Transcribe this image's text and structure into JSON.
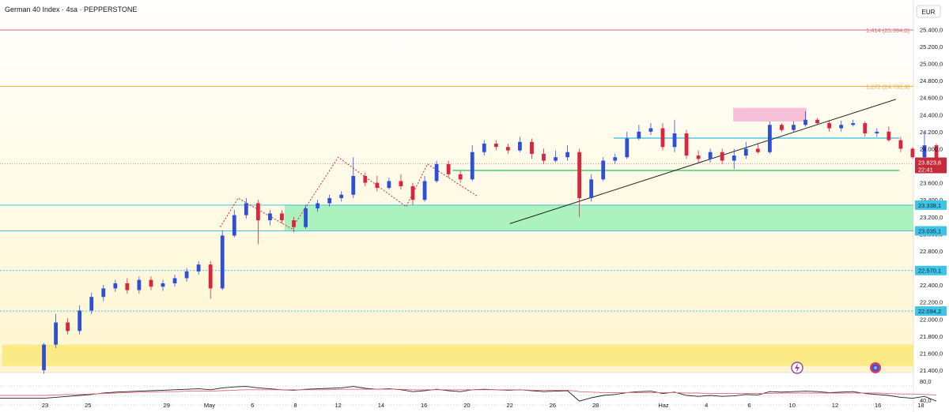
{
  "header": {
    "title": "German 40 Index · 4sa · PEPPERSTONE",
    "currency": "EUR"
  },
  "colors": {
    "up": "#2e4fd6",
    "down": "#d7263d",
    "fib_1414": "#e06b7a",
    "fib_1272": "#f2a93b",
    "support": "#3fc3e6",
    "green_line": "#2ecf6a",
    "green_zone": "#9df0b8",
    "yellow_zone": "#fbe77a",
    "pink_zone": "#f5b8d6",
    "rsi": "#222222",
    "rsi_ma": "#e06b7a",
    "price_tag": "#c62b3a"
  },
  "chart_data": [
    {
      "type": "candlestick",
      "title": "German 40 Index · 4sa · PEPPERSTONE",
      "currency": "EUR",
      "ylim": [
        21370,
        25500
      ],
      "y_ticks": [
        "25.400,0",
        "25.200,0",
        "25.000,0",
        "24.800,0",
        "24.600,0",
        "24.400,0",
        "24.200,0",
        "24.000,0",
        "23.800,0",
        "23.600,0",
        "23.400,0",
        "23.200,0",
        "23.000,0",
        "22.800,0",
        "22.600,0",
        "22.400,0",
        "22.200,0",
        "22.000,0",
        "21.800,0",
        "21.600,0",
        "21.400,0"
      ],
      "y_tick_values": [
        25400,
        25200,
        25000,
        24800,
        24600,
        24400,
        24200,
        24000,
        23800,
        23600,
        23400,
        23200,
        23000,
        22800,
        22600,
        22400,
        22200,
        22000,
        21800,
        21600,
        21400
      ],
      "x_ticks": [
        "23",
        "25",
        "29",
        "May",
        "6",
        "8",
        "12",
        "14",
        "16",
        "20",
        "22",
        "26",
        "28",
        "Haz",
        "4",
        "6",
        "10",
        "12",
        "16",
        "18"
      ],
      "x_tick_slots": [
        4,
        28,
        72,
        96,
        120,
        144,
        168,
        192,
        216,
        240,
        264,
        288,
        312,
        350,
        374,
        398,
        422,
        446,
        470,
        494
      ],
      "price_marker": {
        "value": 23823.6,
        "label": "23.823,6",
        "countdown": "22:41"
      },
      "level_tags": [
        {
          "label": "23.338,1",
          "value": 23338.1
        },
        {
          "label": "23.035,1",
          "value": 23035.1
        },
        {
          "label": "22.570,1",
          "value": 22570.1
        },
        {
          "label": "22.094,2",
          "value": 22094.2
        }
      ],
      "fib_levels": [
        {
          "label": "1,414 (25.394,0)",
          "value": 25394.0
        },
        {
          "label": "1,272 (24.732,3)",
          "value": 24732.3
        }
      ],
      "horizontal_lines": [
        {
          "value": 24125,
          "slot_start": 322,
          "slot_end": 482
        },
        {
          "value": 23745,
          "slot_start": 232,
          "slot_end": 482
        }
      ],
      "zones": [
        {
          "low": 23035.1,
          "high": 23338.1,
          "slot_start": 138,
          "slot_end": 512
        },
        {
          "low": 21450,
          "high": 21700,
          "slot_start": -20,
          "slot_end": 512
        },
        {
          "low": 24320,
          "high": 24480,
          "slot_start": 389,
          "slot_end": 430
        }
      ],
      "trendline": {
        "start": {
          "slot": 264,
          "value": 23120
        },
        "end": {
          "slot": 480,
          "value": 24580
        }
      },
      "zigzag": [
        {
          "slot": 102,
          "value": 23080
        },
        {
          "slot": 112,
          "value": 23420
        },
        {
          "slot": 142,
          "value": 23060
        },
        {
          "slot": 168,
          "value": 23900
        },
        {
          "slot": 206,
          "value": 23320
        },
        {
          "slot": 218,
          "value": 23820
        },
        {
          "slot": 246,
          "value": 23440
        }
      ],
      "candles_daily": [
        [
          21400,
          21700,
          21360,
          21720
        ],
        [
          21700,
          21960,
          21660,
          22060
        ],
        [
          21960,
          21860,
          21820,
          22010
        ],
        [
          21860,
          22100,
          21820,
          22160
        ],
        [
          22100,
          22260,
          22060,
          22310
        ],
        [
          22260,
          22360,
          22210,
          22400
        ],
        [
          22360,
          22420,
          22320,
          22460
        ],
        [
          22420,
          22340,
          22300,
          22480
        ],
        [
          22340,
          22460,
          22300,
          22500
        ],
        [
          22460,
          22380,
          22340,
          22500
        ],
        [
          22380,
          22420,
          22330,
          22460
        ],
        [
          22420,
          22480,
          22380,
          22520
        ],
        [
          22480,
          22560,
          22440,
          22600
        ],
        [
          22560,
          22640,
          22520,
          22680
        ],
        [
          22640,
          22360,
          22240,
          22680
        ],
        [
          22360,
          22980,
          22340,
          23040
        ],
        [
          22980,
          23220,
          22960,
          23280
        ],
        [
          23220,
          23360,
          23180,
          23420
        ],
        [
          23360,
          23160,
          22880,
          23400
        ],
        [
          23160,
          23240,
          23100,
          23280
        ],
        [
          23240,
          23160,
          23120,
          23280
        ],
        [
          23160,
          23080,
          23020,
          23200
        ],
        [
          23080,
          23300,
          23060,
          23340
        ],
        [
          23300,
          23360,
          23260,
          23400
        ],
        [
          23360,
          23420,
          23320,
          23460
        ],
        [
          23420,
          23460,
          23380,
          23500
        ],
        [
          23460,
          23680,
          23420,
          23900
        ],
        [
          23680,
          23600,
          23560,
          23720
        ],
        [
          23600,
          23540,
          23500,
          23680
        ],
        [
          23540,
          23620,
          23520,
          23660
        ],
        [
          23620,
          23560,
          23520,
          23700
        ],
        [
          23560,
          23400,
          23340,
          23600
        ],
        [
          23400,
          23620,
          23380,
          23680
        ],
        [
          23620,
          23820,
          23600,
          23860
        ],
        [
          23820,
          23700,
          23660,
          23860
        ],
        [
          23700,
          23640,
          23600,
          23740
        ],
        [
          23640,
          23960,
          23620,
          24040
        ],
        [
          23960,
          24060,
          23920,
          24100
        ],
        [
          24060,
          24020,
          23980,
          24100
        ],
        [
          24020,
          23980,
          23940,
          24060
        ],
        [
          23980,
          24080,
          23960,
          24140
        ],
        [
          24080,
          23940,
          23880,
          24120
        ],
        [
          23940,
          23860,
          23820,
          24000
        ],
        [
          23860,
          23900,
          23840,
          23980
        ],
        [
          23900,
          23960,
          23860,
          24040
        ],
        [
          23960,
          23420,
          23200,
          24000
        ],
        [
          23420,
          23640,
          23380,
          23700
        ],
        [
          23640,
          23860,
          23620,
          23900
        ],
        [
          23860,
          23900,
          23820,
          23940
        ],
        [
          23900,
          24120,
          23880,
          24200
        ],
        [
          24120,
          24200,
          24100,
          24280
        ],
        [
          24200,
          24240,
          24160,
          24300
        ],
        [
          24240,
          24020,
          23980,
          24300
        ],
        [
          24020,
          24180,
          23960,
          24340
        ],
        [
          24180,
          23920,
          23880,
          24220
        ],
        [
          23920,
          23880,
          23840,
          23980
        ],
        [
          23880,
          23960,
          23840,
          24000
        ],
        [
          23960,
          23860,
          23820,
          24000
        ],
        [
          23860,
          23920,
          23760,
          24000
        ],
        [
          23920,
          24000,
          23880,
          24080
        ],
        [
          24000,
          23960,
          23940,
          24060
        ],
        [
          23960,
          24280,
          23940,
          24320
        ],
        [
          24280,
          24220,
          24200,
          24300
        ],
        [
          24220,
          24280,
          24200,
          24320
        ],
        [
          24280,
          24340,
          24260,
          24440
        ],
        [
          24340,
          24300,
          24280,
          24360
        ],
        [
          24300,
          24240,
          24200,
          24340
        ],
        [
          24240,
          24280,
          24200,
          24330
        ],
        [
          24280,
          24300,
          24260,
          24340
        ],
        [
          24300,
          24180,
          24140,
          24320
        ],
        [
          24180,
          24200,
          24140,
          24240
        ],
        [
          24200,
          24100,
          24080,
          24260
        ],
        [
          24100,
          24000,
          23960,
          24140
        ],
        [
          24000,
          23900,
          23880,
          24020
        ],
        [
          23900,
          24040,
          23880,
          24180
        ],
        [
          24040,
          23820,
          23800,
          24060
        ]
      ],
      "slot_span": [
        0,
        506
      ]
    },
    {
      "type": "line",
      "name": "RSI",
      "ylim": [
        20,
        100
      ],
      "y_ticks": [
        "80,0",
        "40,0"
      ],
      "y_tick_values": [
        80,
        40
      ],
      "reference_lines": [
        70,
        50,
        30
      ],
      "series": [
        {
          "values": [
            44,
            46,
            48,
            50,
            52,
            55,
            57,
            58,
            59,
            60,
            61,
            62,
            63,
            64,
            62,
            66,
            68,
            69,
            66,
            64,
            62,
            61,
            63,
            64,
            65,
            66,
            69,
            65,
            63,
            64,
            62,
            58,
            60,
            63,
            60,
            58,
            62,
            63,
            62,
            61,
            62,
            60,
            58,
            59,
            60,
            38,
            45,
            50,
            52,
            56,
            58,
            59,
            54,
            57,
            50,
            48,
            50,
            48,
            49,
            52,
            51,
            58,
            57,
            58,
            59,
            58,
            56,
            57,
            58,
            54,
            52,
            50,
            46,
            44,
            48,
            38
          ]
        },
        {
          "values": [
            50,
            51,
            52,
            52,
            53,
            54,
            55,
            56,
            57,
            57,
            58,
            58,
            59,
            59,
            59,
            60,
            61,
            62,
            62,
            62,
            62,
            62,
            62,
            62,
            62,
            63,
            63,
            63,
            63,
            63,
            63,
            62,
            62,
            62,
            62,
            62,
            62,
            62,
            62,
            62,
            62,
            61,
            61,
            61,
            61,
            58,
            57,
            56,
            56,
            56,
            56,
            56,
            56,
            56,
            55,
            55,
            54,
            54,
            54,
            54,
            54,
            54,
            55,
            55,
            55,
            55,
            55,
            55,
            55,
            55,
            55,
            54,
            53,
            53,
            52,
            51
          ]
        }
      ]
    }
  ],
  "drawing_tools": {
    "lightning_icon": "lightning-icon",
    "flag_icon": "globe-icon"
  }
}
